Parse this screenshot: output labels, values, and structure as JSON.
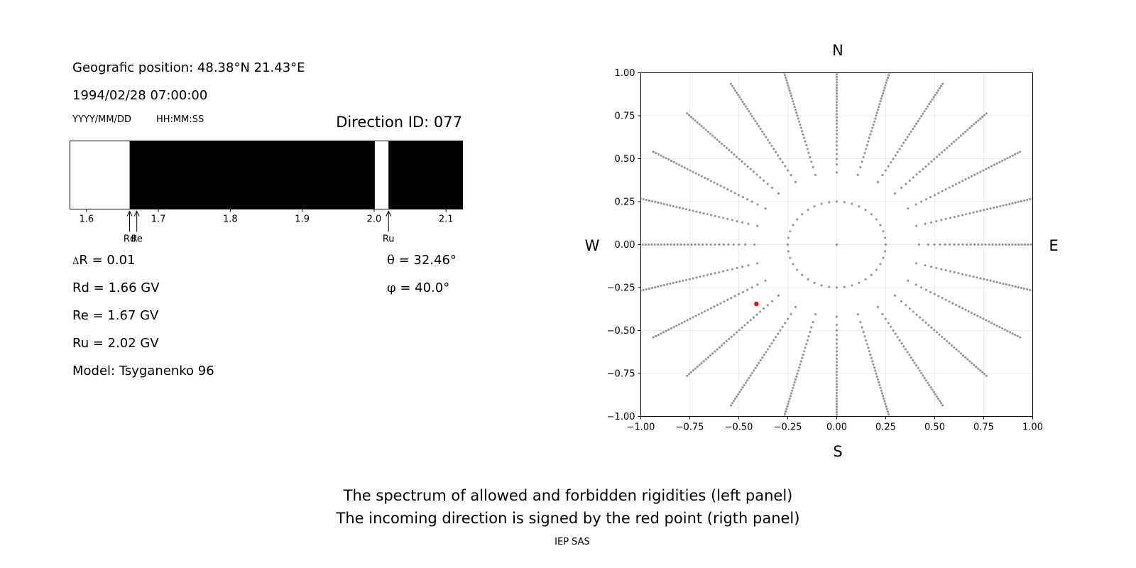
{
  "header": {
    "position_text": "Geografic position: 48.38°N 21.43°E",
    "datetime_text": "1994/02/28 07:00:00",
    "date_format_label": "YYYY/MM/DD",
    "time_format_label": "HH:MM:SS",
    "direction_id_text": "Direction ID: 077"
  },
  "params": {
    "delta_r_symbol": "Δ",
    "delta_r_text": "R = 0.01",
    "rd_text": "Rd = 1.66 GV",
    "re_text": "Re = 1.67 GV",
    "ru_text": "Ru = 2.02 GV",
    "model_text": "Model: Tsyganenko 96",
    "theta_symbol": "θ",
    "theta_text": " = 32.46°",
    "phi_symbol": "φ",
    "phi_text": " = 40.0°"
  },
  "compass": {
    "north": "N",
    "south": "S",
    "west": "W",
    "east": "E"
  },
  "captions": {
    "line1": "The spectrum of allowed and forbidden rigidities (left panel)",
    "line2": "The incoming direction is signed by the red point (rigth panel)",
    "credit": "IEP SAS"
  },
  "colors": {
    "allowed": "#ffffff",
    "forbidden": "#000000",
    "grid_point": "#999999",
    "direction_point": "#ff0000"
  },
  "chart_data": [
    {
      "type": "bar",
      "xlim": [
        1.577,
        2.123
      ],
      "x_ticks": [
        "1.6",
        "1.7",
        "1.8",
        "1.9",
        "2.0",
        "2.1"
      ],
      "bands": [
        {
          "from": 1.577,
          "to": 1.66,
          "state": "allowed"
        },
        {
          "from": 1.66,
          "to": 2.001,
          "state": "forbidden"
        },
        {
          "from": 2.001,
          "to": 2.02,
          "state": "allowed"
        },
        {
          "from": 2.02,
          "to": 2.123,
          "state": "forbidden"
        }
      ],
      "markers": [
        {
          "name": "Rd",
          "value": 1.66
        },
        {
          "name": "Re",
          "value": 1.67
        },
        {
          "name": "Ru",
          "value": 2.02
        }
      ]
    },
    {
      "type": "scatter",
      "xlim": [
        -1.0,
        1.0
      ],
      "ylim": [
        -1.0,
        1.0
      ],
      "x_ticks": [
        "−1.00",
        "−0.75",
        "−0.50",
        "−0.25",
        "0.00",
        "0.25",
        "0.50",
        "0.75",
        "1.00"
      ],
      "y_ticks": [
        "−1.00",
        "−0.75",
        "−0.50",
        "−0.25",
        "0.00",
        "0.25",
        "0.50",
        "0.75",
        "1.00"
      ],
      "grid": true,
      "directions_grid": {
        "center": [
          0,
          0
        ],
        "inner_ring_radius": 0.25,
        "azimuth_step_deg": 15,
        "radius_max": 1.0,
        "radial_points": 35
      },
      "highlight": {
        "x": -0.41,
        "y": -0.345
      }
    }
  ]
}
